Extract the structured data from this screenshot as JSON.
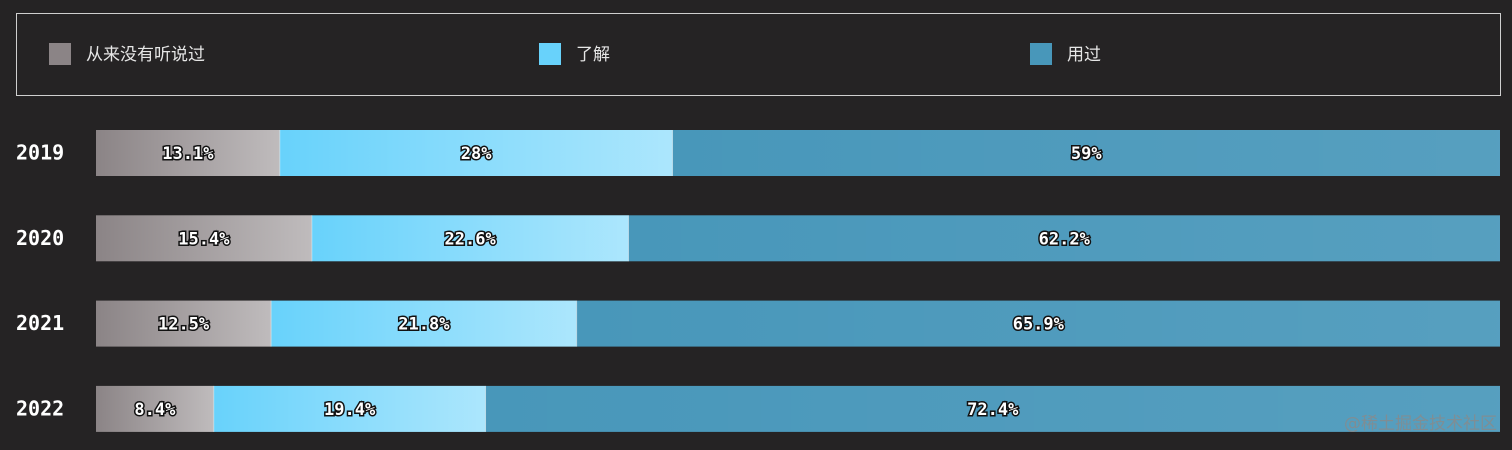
{
  "chart_data": {
    "type": "stacked-bar-horizontal",
    "categories": [
      "2019",
      "2020",
      "2021",
      "2022"
    ],
    "series": [
      {
        "name": "从来没有听说过",
        "color": "#8b8486",
        "values": [
          13.1,
          15.4,
          12.5,
          8.4
        ],
        "value_labels": [
          "13.1%",
          "15.4%",
          "12.5%",
          "8.4%"
        ]
      },
      {
        "name": "了解",
        "color": "#68d2fb",
        "values": [
          28,
          22.6,
          21.8,
          19.4
        ],
        "value_labels": [
          "28%",
          "22.6%",
          "21.8%",
          "19.4%"
        ]
      },
      {
        "name": "用过",
        "color": "#4897ba",
        "values": [
          59,
          62.2,
          65.9,
          72.4
        ],
        "value_labels": [
          "59%",
          "62.2%",
          "65.9%",
          "72.4%"
        ]
      }
    ],
    "legend": "top",
    "watermark": "@稀土掘金技术社区"
  }
}
